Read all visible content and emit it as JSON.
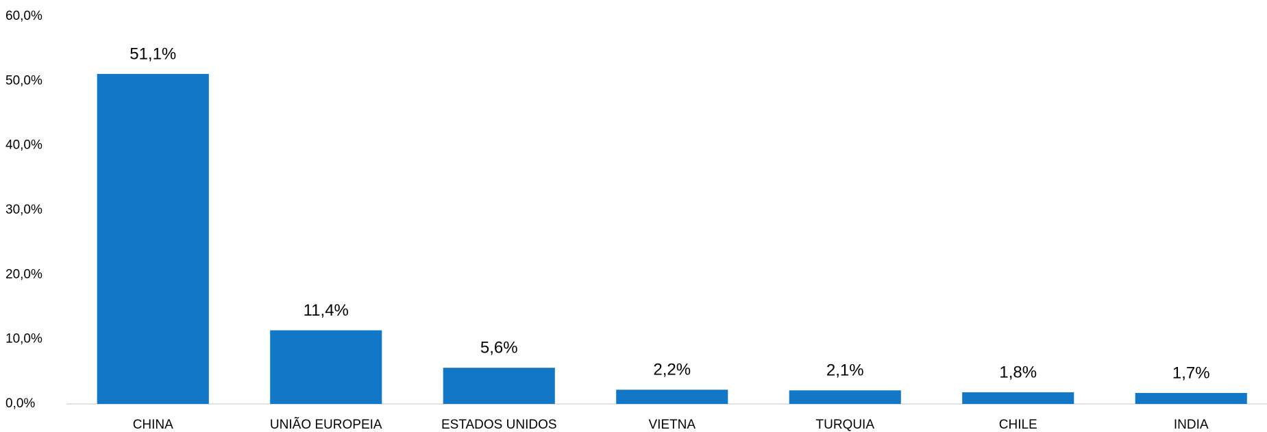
{
  "chart_data": {
    "type": "bar",
    "categories": [
      "CHINA",
      "UNIÃO EUROPEIA",
      "ESTADOS UNIDOS",
      "VIETNA",
      "TURQUIA",
      "CHILE",
      "INDIA"
    ],
    "values": [
      51.1,
      11.4,
      5.6,
      2.2,
      2.1,
      1.8,
      1.7
    ],
    "value_labels": [
      "51,1%",
      "11,4%",
      "5,6%",
      "2,2%",
      "2,1%",
      "1,8%",
      "1,7%"
    ],
    "color": "#1177c6",
    "ylim": [
      0,
      60
    ],
    "yticks": [
      {
        "value": 0,
        "label": "0,0%"
      },
      {
        "value": 10,
        "label": "10,0%"
      },
      {
        "value": 20,
        "label": "20,0%"
      },
      {
        "value": 30,
        "label": "30,0%"
      },
      {
        "value": 40,
        "label": "40,0%"
      },
      {
        "value": 50,
        "label": "50,0%"
      },
      {
        "value": 60,
        "label": "60,0%"
      }
    ],
    "grid": false
  }
}
